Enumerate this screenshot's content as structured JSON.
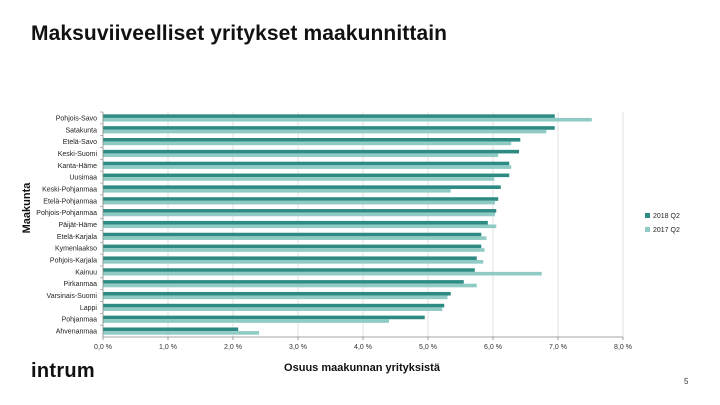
{
  "title": "Maksuviiveelliset yritykset maakunnittain",
  "logo_text": "intrum",
  "page_number": "5",
  "colors": {
    "series_2018": "#2e8b84",
    "series_2017": "#8fcbc4",
    "grid": "#d9d9d9",
    "axis": "#888888"
  },
  "chart_data": {
    "type": "bar",
    "orientation": "horizontal",
    "xlabel": "Osuus maakunnan yrityksistä",
    "ylabel": "Maakunta",
    "xlim": [
      0,
      8
    ],
    "x_tick_labels": [
      "0,0 %",
      "1,0 %",
      "2,0 %",
      "3,0 %",
      "4,0 %",
      "5,0 %",
      "6,0 %",
      "7,0 %",
      "8,0 %"
    ],
    "legend_position": "right",
    "grid": true,
    "categories": [
      "Pohjois-Savo",
      "Satakunta",
      "Etelä-Savo",
      "Keski-Suomi",
      "Kanta-Häme",
      "Uusimaa",
      "Keski-Pohjanmaa",
      "Etelä-Pohjanmaa",
      "Pohjois-Pohjanmaa",
      "Päijät-Häme",
      "Etelä-Karjala",
      "Kymenlaakso",
      "Pohjois-Karjala",
      "Kainuu",
      "Pirkanmaa",
      "Varsinais-Suomi",
      "Lappi",
      "Pohjanmaa",
      "Ahvenanmaa"
    ],
    "series": [
      {
        "name": "2018 Q2",
        "values": [
          6.95,
          6.95,
          6.42,
          6.4,
          6.25,
          6.25,
          6.12,
          6.08,
          6.05,
          5.92,
          5.82,
          5.82,
          5.75,
          5.72,
          5.55,
          5.35,
          5.25,
          4.95,
          2.08
        ]
      },
      {
        "name": "2017 Q2",
        "values": [
          7.52,
          6.82,
          6.28,
          6.08,
          6.28,
          6.02,
          5.35,
          6.03,
          6.03,
          6.05,
          5.9,
          5.87,
          5.85,
          6.75,
          5.75,
          5.3,
          5.22,
          4.4,
          2.4
        ]
      }
    ]
  }
}
